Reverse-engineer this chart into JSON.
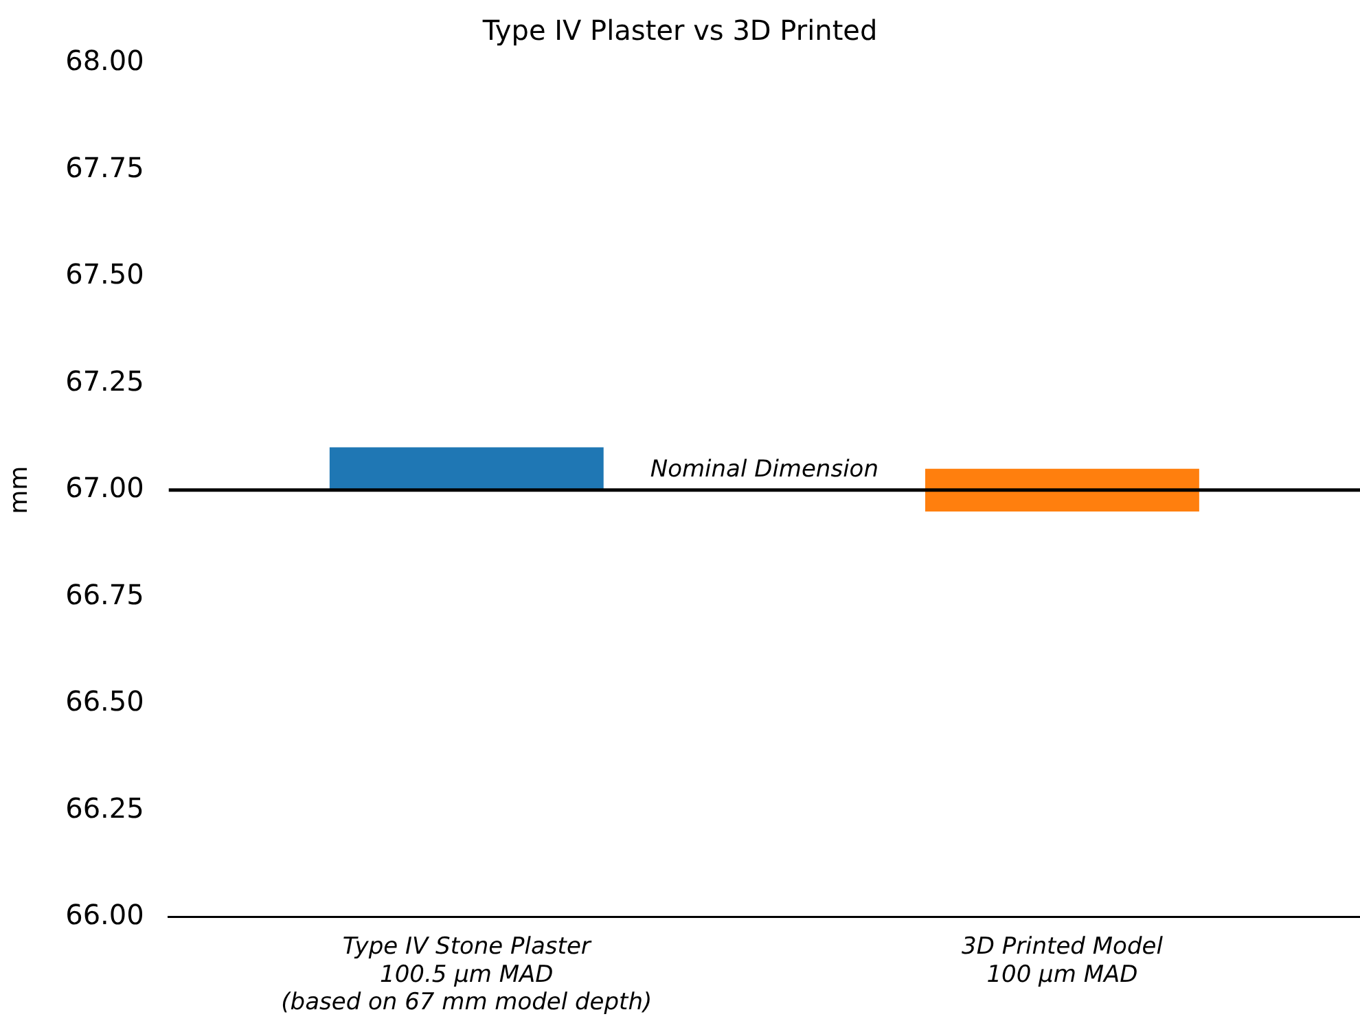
{
  "chart_data": {
    "type": "bar",
    "title": "Type IV Plaster vs 3D Printed",
    "ylabel": "mm",
    "categories": [
      "Type IV Stone Plaster\n100.5 µm MAD\n(based on 67 mm model depth)",
      "3D Printed Model\n100 µm MAD"
    ],
    "values": [
      0.1,
      0.1
    ],
    "base": [
      67.0,
      66.95
    ],
    "colors": [
      "#1f77b4",
      "#ff7f0e"
    ],
    "ylim": [
      66,
      68
    ],
    "yticks": [
      {
        "value": 66,
        "label": "66.00"
      },
      {
        "value": 66.25,
        "label": "66.25"
      },
      {
        "value": 66.5,
        "label": "66.50"
      },
      {
        "value": 66.75,
        "label": "66.75"
      },
      {
        "value": 67,
        "label": "67.00"
      },
      {
        "value": 67.25,
        "label": "67.25"
      },
      {
        "value": 67.5,
        "label": "67.50"
      },
      {
        "value": 67.75,
        "label": "67.75"
      },
      {
        "value": 68,
        "label": "68.00"
      }
    ],
    "ref_lines": [
      {
        "axis": "y",
        "value": 67,
        "label": "Nominal Dimension",
        "color": "#000000",
        "line_style": "solid"
      }
    ],
    "grid": false,
    "legend": false
  }
}
